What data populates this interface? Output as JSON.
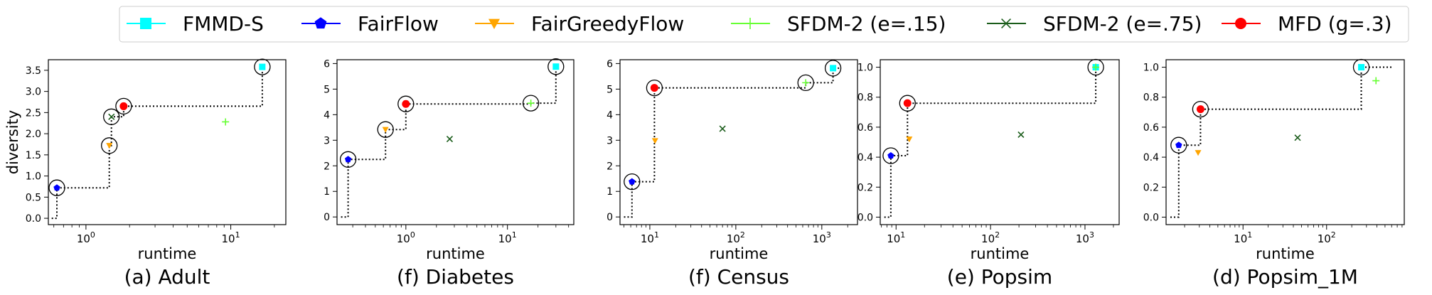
{
  "legend": {
    "placement": "top-center",
    "entries": [
      {
        "name": "FMMD-S",
        "color": "#00ffff",
        "marker": "square"
      },
      {
        "name": "FairFlow",
        "color": "#0000ff",
        "marker": "pentagon"
      },
      {
        "name": "FairGreedyFlow",
        "color": "#ffa500",
        "marker": "triangle-down"
      },
      {
        "name": "SFDM-2 (e=.15)",
        "color": "#66ff33",
        "marker": "plus"
      },
      {
        "name": "SFDM-2 (e=.75)",
        "color": "#1a5c1a",
        "marker": "x"
      },
      {
        "name": "MFD (g=.3)",
        "color": "#ff0000",
        "marker": "circle"
      }
    ]
  },
  "chart_data": [
    {
      "type": "scatter",
      "title": "(a) Adult",
      "xlabel": "runtime",
      "ylabel": "diversity",
      "xscale": "log",
      "xlim": [
        0.55,
        24
      ],
      "ylim": [
        -0.15,
        3.75
      ],
      "xticks": [
        {
          "v": 1,
          "label": "10^0"
        },
        {
          "v": 10,
          "label": "10^1"
        }
      ],
      "yticks": [
        {
          "v": 0,
          "label": "0.0"
        },
        {
          "v": 0.5,
          "label": "0.5"
        },
        {
          "v": 1,
          "label": "1.0"
        },
        {
          "v": 1.5,
          "label": "1.5"
        },
        {
          "v": 2,
          "label": "2.0"
        },
        {
          "v": 2.5,
          "label": "2.5"
        },
        {
          "v": 3,
          "label": "3.0"
        },
        {
          "v": 3.5,
          "label": "3.5"
        }
      ],
      "points": [
        {
          "series": "FMMD-S",
          "x": 16.5,
          "y": 3.58
        },
        {
          "series": "FairFlow",
          "x": 0.63,
          "y": 0.72
        },
        {
          "series": "FairGreedyFlow",
          "x": 1.45,
          "y": 1.72
        },
        {
          "series": "SFDM-2 (e=.15)",
          "x": 9.2,
          "y": 2.28
        },
        {
          "series": "SFDM-2 (e=.75)",
          "x": 1.5,
          "y": 2.4
        },
        {
          "series": "MFD (g=.3)",
          "x": 1.82,
          "y": 2.65
        }
      ],
      "skyline": [
        [
          0.63,
          0.72
        ],
        [
          1.45,
          1.72
        ],
        [
          1.5,
          2.4
        ],
        [
          1.82,
          2.65
        ],
        [
          16.5,
          3.58
        ]
      ],
      "skyline_start_x": 0.58,
      "skyline_end_x": null
    },
    {
      "type": "scatter",
      "title": "(f) Diabetes",
      "xlabel": "runtime",
      "ylabel": "",
      "xscale": "log",
      "xlim": [
        0.21,
        45
      ],
      "ylim": [
        -0.3,
        6.15
      ],
      "xticks": [
        {
          "v": 1,
          "label": "10^0"
        },
        {
          "v": 10,
          "label": "10^1"
        }
      ],
      "yticks": [
        {
          "v": 0,
          "label": "0"
        },
        {
          "v": 1,
          "label": "1"
        },
        {
          "v": 2,
          "label": "2"
        },
        {
          "v": 3,
          "label": "3"
        },
        {
          "v": 4,
          "label": "4"
        },
        {
          "v": 5,
          "label": "5"
        },
        {
          "v": 6,
          "label": "6"
        }
      ],
      "points": [
        {
          "series": "FMMD-S",
          "x": 30,
          "y": 5.88
        },
        {
          "series": "FairFlow",
          "x": 0.27,
          "y": 2.25
        },
        {
          "series": "FairGreedyFlow",
          "x": 0.63,
          "y": 3.42
        },
        {
          "series": "SFDM-2 (e=.15)",
          "x": 17,
          "y": 4.45
        },
        {
          "series": "SFDM-2 (e=.75)",
          "x": 2.7,
          "y": 3.05
        },
        {
          "series": "MFD (g=.3)",
          "x": 1.0,
          "y": 4.42
        }
      ],
      "skyline": [
        [
          0.27,
          2.25
        ],
        [
          0.63,
          3.42
        ],
        [
          1.0,
          4.42
        ],
        [
          17,
          4.45
        ],
        [
          30,
          5.88
        ]
      ],
      "skyline_start_x": 0.23,
      "skyline_end_x": null
    },
    {
      "type": "scatter",
      "title": "(f) Census",
      "xlabel": "runtime",
      "ylabel": "",
      "xscale": "log",
      "xlim": [
        4.5,
        2600
      ],
      "ylim": [
        -0.3,
        6.15
      ],
      "xticks": [
        {
          "v": 10,
          "label": "10^1"
        },
        {
          "v": 100,
          "label": "10^2"
        },
        {
          "v": 1000,
          "label": "10^3"
        }
      ],
      "yticks": [
        {
          "v": 0,
          "label": "0"
        },
        {
          "v": 1,
          "label": "1"
        },
        {
          "v": 2,
          "label": "2"
        },
        {
          "v": 3,
          "label": "3"
        },
        {
          "v": 4,
          "label": "4"
        },
        {
          "v": 5,
          "label": "5"
        },
        {
          "v": 6,
          "label": "6"
        }
      ],
      "points": [
        {
          "series": "FMMD-S",
          "x": 1350,
          "y": 5.82
        },
        {
          "series": "FairFlow",
          "x": 6.2,
          "y": 1.38
        },
        {
          "series": "FairGreedyFlow",
          "x": 11.5,
          "y": 2.98
        },
        {
          "series": "SFDM-2 (e=.15)",
          "x": 650,
          "y": 5.25
        },
        {
          "series": "SFDM-2 (e=.75)",
          "x": 70,
          "y": 3.45
        },
        {
          "series": "MFD (g=.3)",
          "x": 11.3,
          "y": 5.05
        }
      ],
      "skyline": [
        [
          6.2,
          1.38
        ],
        [
          11.3,
          5.05
        ],
        [
          650,
          5.25
        ],
        [
          1350,
          5.82
        ]
      ],
      "skyline_start_x": 5.0,
      "skyline_end_x": 1600
    },
    {
      "type": "scatter",
      "title": "(e) Popsim",
      "xlabel": "runtime",
      "ylabel": "",
      "xscale": "log",
      "xlim": [
        6.8,
        2300
      ],
      "ylim": [
        -0.05,
        1.05
      ],
      "xticks": [
        {
          "v": 10,
          "label": "10^1"
        },
        {
          "v": 100,
          "label": "10^2"
        },
        {
          "v": 1000,
          "label": "10^3"
        }
      ],
      "yticks": [
        {
          "v": 0,
          "label": "0.0"
        },
        {
          "v": 0.2,
          "label": "0.2"
        },
        {
          "v": 0.4,
          "label": "0.4"
        },
        {
          "v": 0.6,
          "label": "0.6"
        },
        {
          "v": 0.8,
          "label": "0.8"
        },
        {
          "v": 1,
          "label": "1.0"
        }
      ],
      "points": [
        {
          "series": "FMMD-S",
          "x": 1300,
          "y": 1.0
        },
        {
          "series": "FairFlow",
          "x": 8.8,
          "y": 0.41
        },
        {
          "series": "FairGreedyFlow",
          "x": 13.8,
          "y": 0.52
        },
        {
          "series": "SFDM-2 (e=.15)",
          "x": 1300,
          "y": 1.0
        },
        {
          "series": "SFDM-2 (e=.75)",
          "x": 210,
          "y": 0.55
        },
        {
          "series": "MFD (g=.3)",
          "x": 13.2,
          "y": 0.76
        }
      ],
      "skyline": [
        [
          8.8,
          0.41
        ],
        [
          13.2,
          0.76
        ],
        [
          1300,
          1.0
        ]
      ],
      "skyline_start_x": 7.5,
      "skyline_end_x": null
    },
    {
      "type": "scatter",
      "title": "(d) Popsim_1M",
      "xlabel": "runtime",
      "ylabel": "",
      "xscale": "log",
      "xlim": [
        1.2,
        850
      ],
      "ylim": [
        -0.05,
        1.05
      ],
      "xticks": [
        {
          "v": 10,
          "label": "10^1"
        },
        {
          "v": 100,
          "label": "10^2"
        }
      ],
      "yticks": [
        {
          "v": 0,
          "label": "0.0"
        },
        {
          "v": 0.2,
          "label": "0.2"
        },
        {
          "v": 0.4,
          "label": "0.4"
        },
        {
          "v": 0.6,
          "label": "0.6"
        },
        {
          "v": 0.8,
          "label": "0.8"
        },
        {
          "v": 1,
          "label": "1.0"
        }
      ],
      "points": [
        {
          "series": "FMMD-S",
          "x": 260,
          "y": 1.0
        },
        {
          "series": "FairFlow",
          "x": 1.7,
          "y": 0.48
        },
        {
          "series": "FairGreedyFlow",
          "x": 2.9,
          "y": 0.43
        },
        {
          "series": "SFDM-2 (e=.15)",
          "x": 390,
          "y": 0.91
        },
        {
          "series": "SFDM-2 (e=.75)",
          "x": 45,
          "y": 0.53
        },
        {
          "series": "MFD (g=.3)",
          "x": 3.1,
          "y": 0.72
        }
      ],
      "skyline": [
        [
          1.7,
          0.48
        ],
        [
          3.1,
          0.72
        ],
        [
          260,
          1.0
        ]
      ],
      "skyline_start_x": 1.35,
      "skyline_end_x": 600
    }
  ]
}
